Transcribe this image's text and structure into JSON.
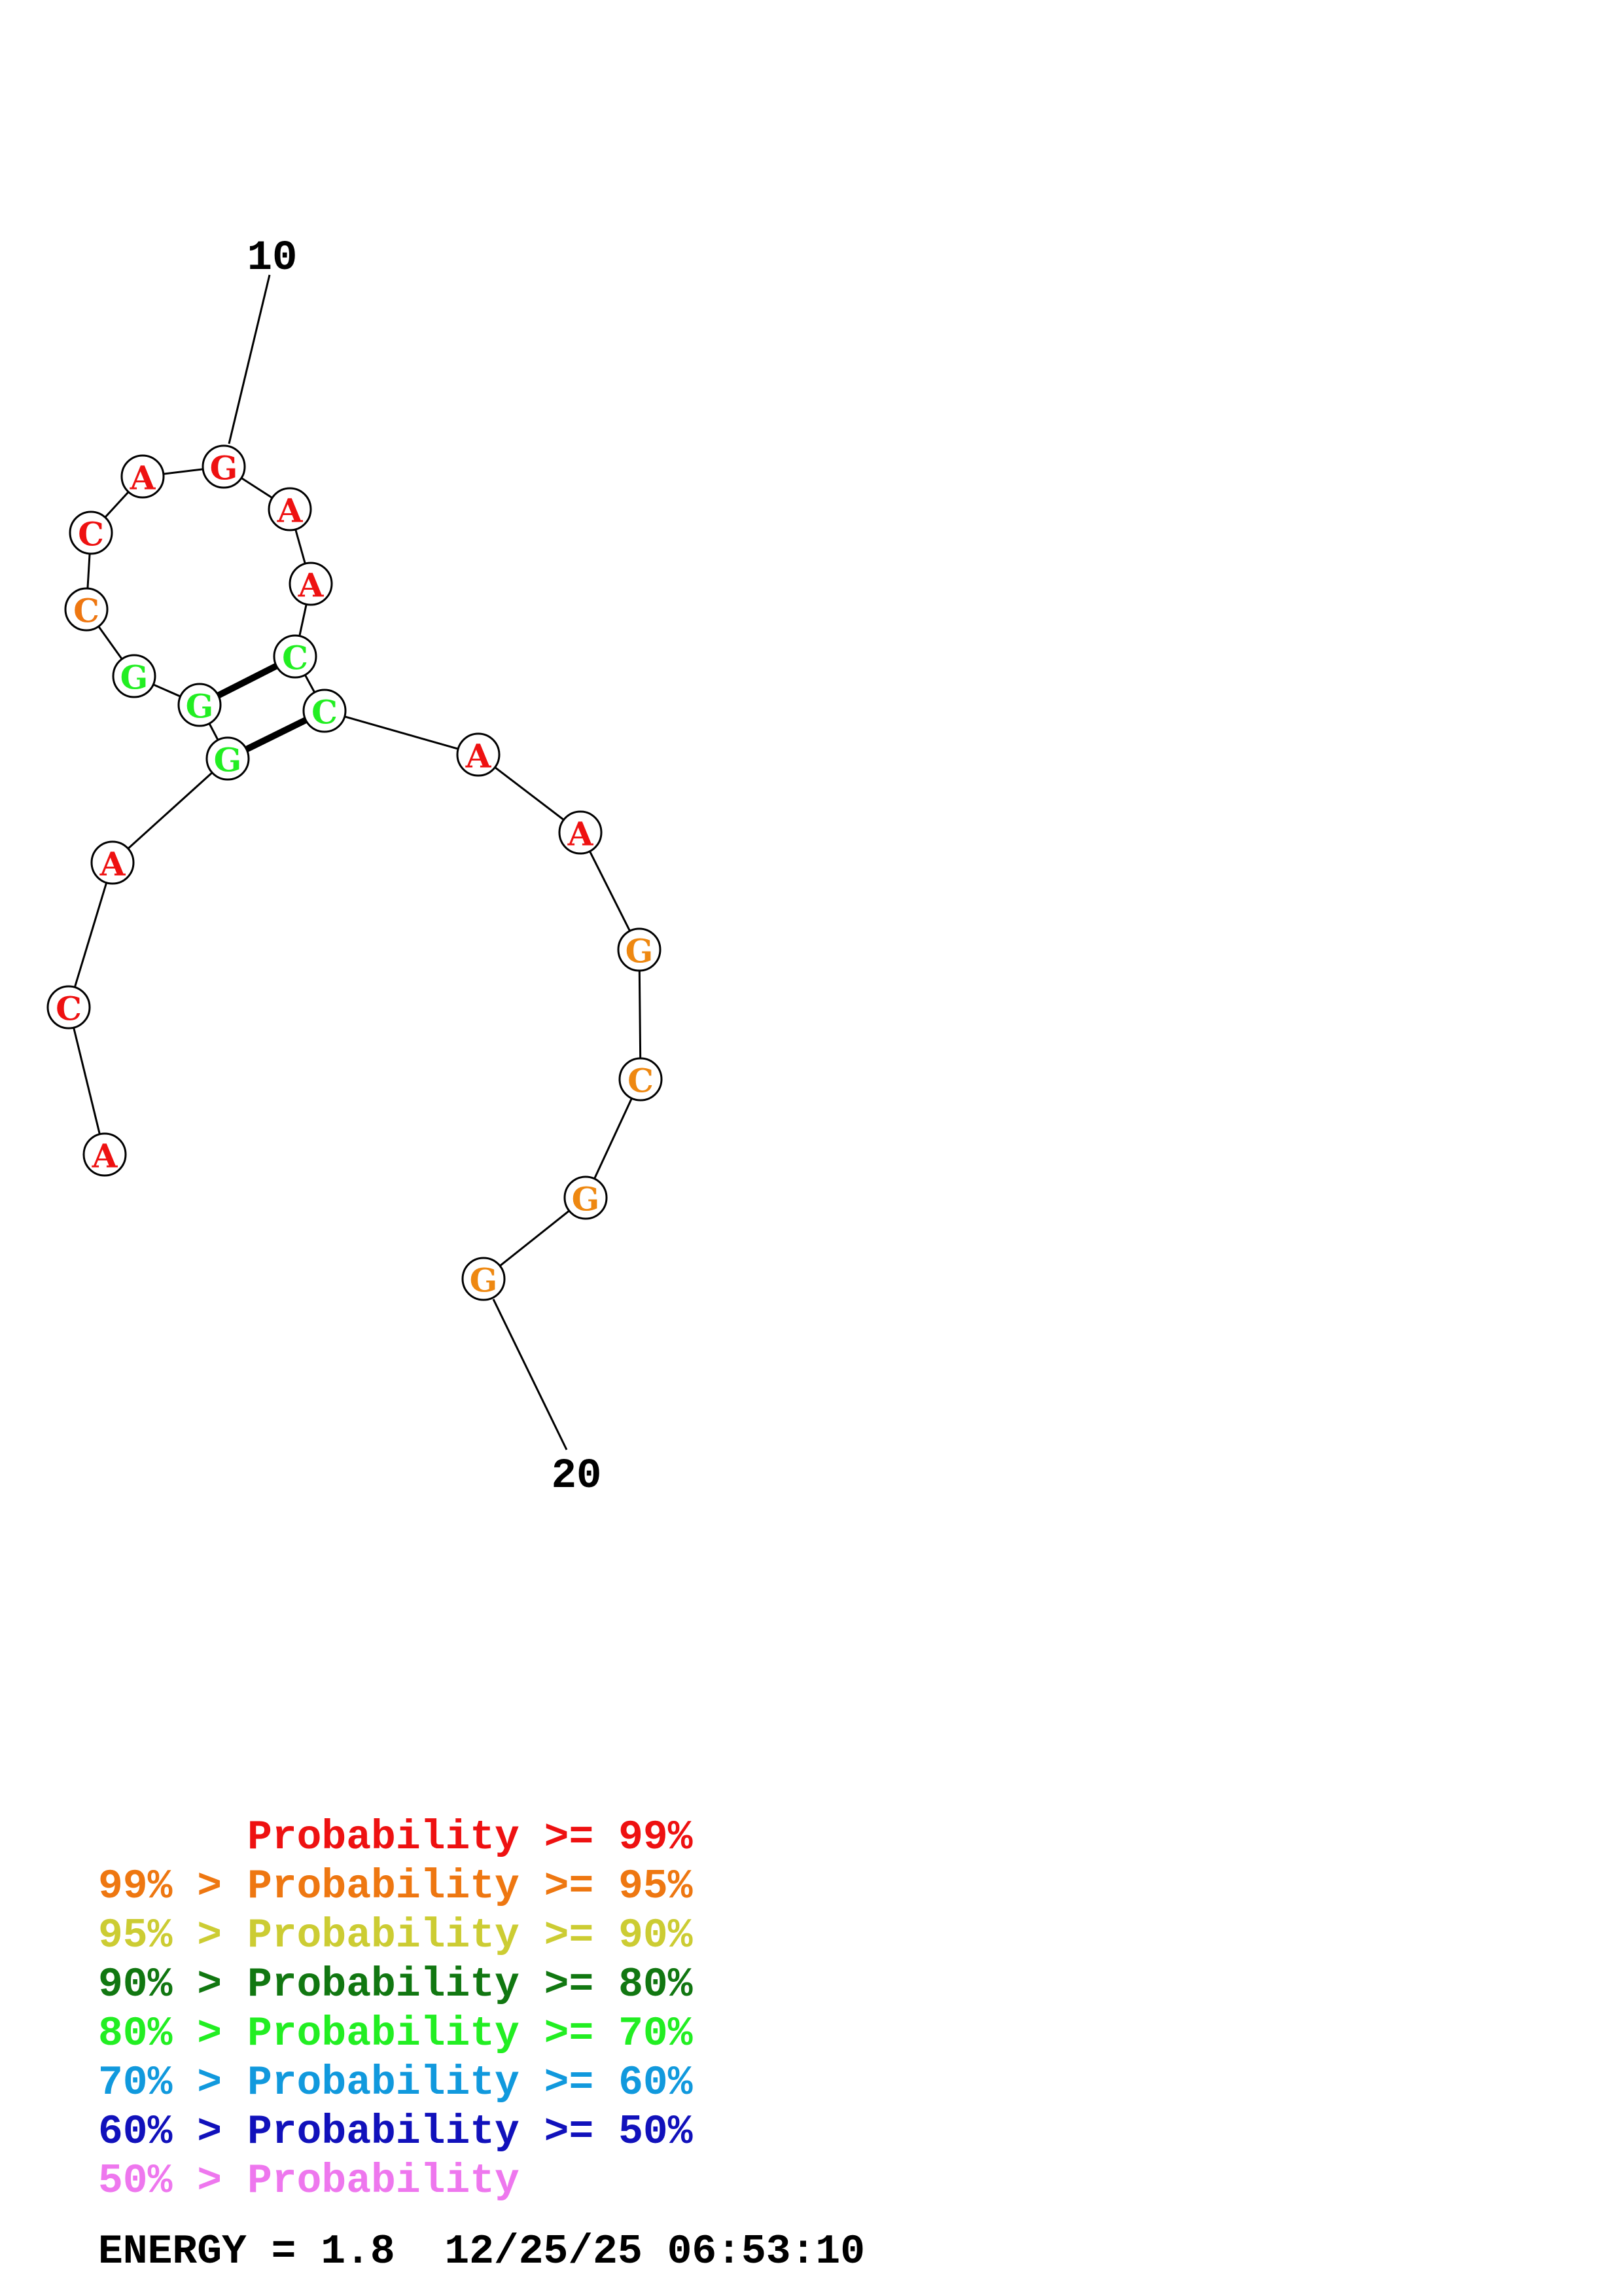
{
  "sequence": [
    {
      "base": "A",
      "color": "#ee1111"
    },
    {
      "base": "C",
      "color": "#ee1111"
    },
    {
      "base": "A",
      "color": "#ee1111"
    },
    {
      "base": "G",
      "color": "#22ee22"
    },
    {
      "base": "G",
      "color": "#22ee22"
    },
    {
      "base": "G",
      "color": "#22ee22"
    },
    {
      "base": "C",
      "color": "#ee7711"
    },
    {
      "base": "C",
      "color": "#ee1111"
    },
    {
      "base": "A",
      "color": "#ee1111"
    },
    {
      "base": "G",
      "color": "#ee1111"
    },
    {
      "base": "A",
      "color": "#ee1111"
    },
    {
      "base": "A",
      "color": "#ee1111"
    },
    {
      "base": "C",
      "color": "#22ee22"
    },
    {
      "base": "C",
      "color": "#22ee22"
    },
    {
      "base": "A",
      "color": "#ee1111"
    },
    {
      "base": "A",
      "color": "#ee1111"
    },
    {
      "base": "G",
      "color": "#ee8811"
    },
    {
      "base": "C",
      "color": "#ee8811"
    },
    {
      "base": "G",
      "color": "#ee8811"
    },
    {
      "base": "G",
      "color": "#ee8811"
    }
  ],
  "base_pairs": [
    [
      4,
      14
    ],
    [
      5,
      13
    ]
  ],
  "index_labels": [
    {
      "text": "10",
      "nucleotide": 10
    },
    {
      "text": "20",
      "nucleotide": 20
    }
  ],
  "legend": [
    {
      "prefix": "",
      "label": "Probability >= 99%",
      "color": "#ee1111"
    },
    {
      "prefix": "99% > ",
      "label": "Probability >= 95%",
      "color": "#ee7711"
    },
    {
      "prefix": "95% > ",
      "label": "Probability >= 90%",
      "color": "#cccc33"
    },
    {
      "prefix": "90% > ",
      "label": "Probability >= 80%",
      "color": "#117711"
    },
    {
      "prefix": "80% > ",
      "label": "Probability >= 70%",
      "color": "#22ee22"
    },
    {
      "prefix": "70% > ",
      "label": "Probability >= 60%",
      "color": "#1199dd"
    },
    {
      "prefix": "60% > ",
      "label": "Probability >= 50%",
      "color": "#1111bb"
    },
    {
      "prefix": "50% > ",
      "label": "Probability",
      "color": "#ee77ee"
    }
  ],
  "footer": {
    "energy": "ENERGY = 1.8",
    "timestamp": "12/25/25 06:53:10"
  }
}
